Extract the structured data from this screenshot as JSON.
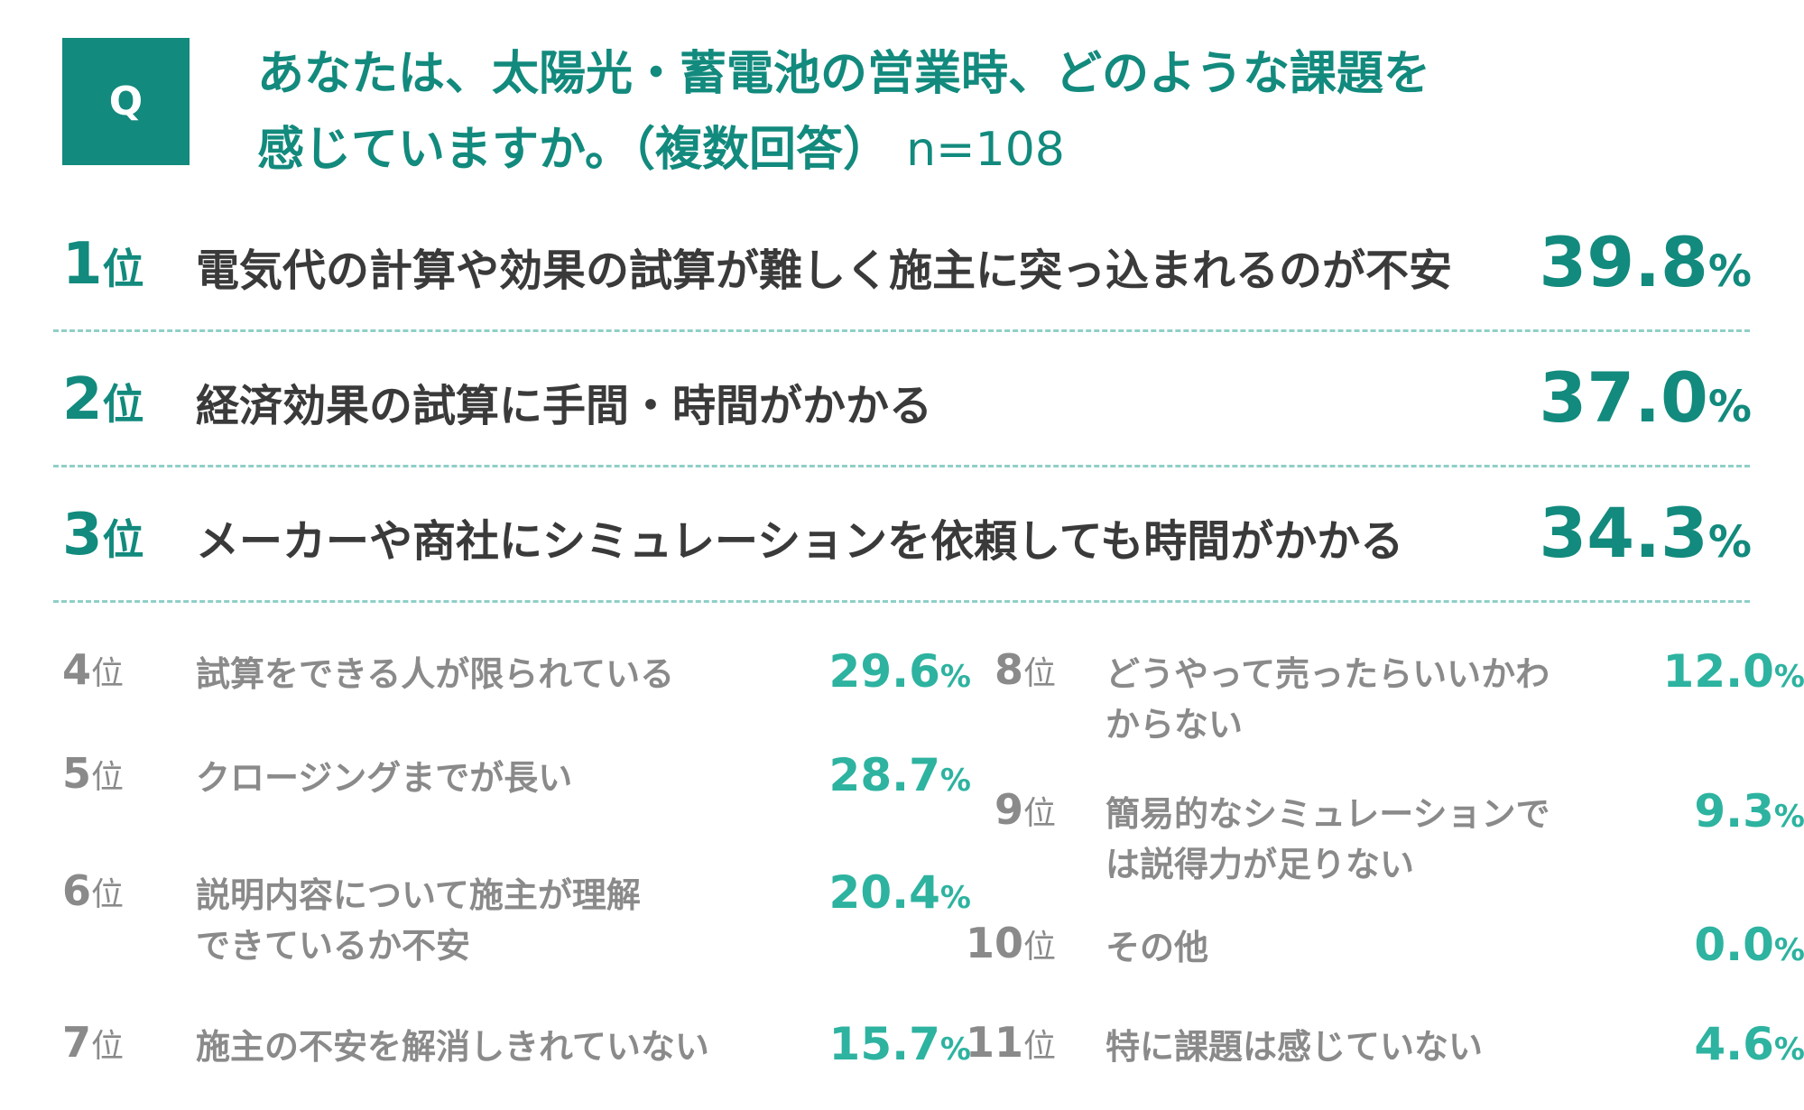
{
  "question": {
    "badge": "Q",
    "title_line1": "あなたは、太陽光・蓄電池の営業時、どのような課題を",
    "title_line2": "感じていますか。（複数回答）",
    "sample": "n=108"
  },
  "colors": {
    "accent": "#128a7d",
    "value_light": "#2db3a0",
    "text_gray": "#8a8a8a",
    "separator": "#8fcfc7"
  },
  "chart_data": {
    "type": "table",
    "columns": [
      "rank",
      "item",
      "percent"
    ],
    "unit": "%",
    "rows": [
      {
        "rank": "1",
        "rank_suffix": "位",
        "label": "電気代の計算や効果の試算が難しく施主に突っ込まれるのが不安",
        "value": "39.8",
        "unit": "%"
      },
      {
        "rank": "2",
        "rank_suffix": "位",
        "label": "経済効果の試算に手間・時間がかかる",
        "value": "37.0",
        "unit": "%"
      },
      {
        "rank": "3",
        "rank_suffix": "位",
        "label": "メーカーや商社にシミュレーションを依頼しても時間がかかる",
        "value": "34.3",
        "unit": "%"
      },
      {
        "rank": "4",
        "rank_suffix": "位",
        "label": "試算をできる人が限られている",
        "value": "29.6",
        "unit": "%"
      },
      {
        "rank": "5",
        "rank_suffix": "位",
        "label": "クロージングまでが長い",
        "value": "28.7",
        "unit": "%"
      },
      {
        "rank": "6",
        "rank_suffix": "位",
        "label": "説明内容について施主が理解できているか不安",
        "value": "20.4",
        "unit": "%"
      },
      {
        "rank": "7",
        "rank_suffix": "位",
        "label": "施主の不安を解消しきれていない",
        "value": "15.7",
        "unit": "%"
      },
      {
        "rank": "8",
        "rank_suffix": "位",
        "label": "どうやって売ったらいいかわからない",
        "value": "12.0",
        "unit": "%"
      },
      {
        "rank": "9",
        "rank_suffix": "位",
        "label": "簡易的なシミュレーションでは説得力が足りない",
        "value": "9.3",
        "unit": "%"
      },
      {
        "rank": "10",
        "rank_suffix": "位",
        "label": "その他",
        "value": "0.0",
        "unit": "%"
      },
      {
        "rank": "11",
        "rank_suffix": "位",
        "label": "特に課題は感じていない",
        "value": "4.6",
        "unit": "%"
      }
    ]
  }
}
